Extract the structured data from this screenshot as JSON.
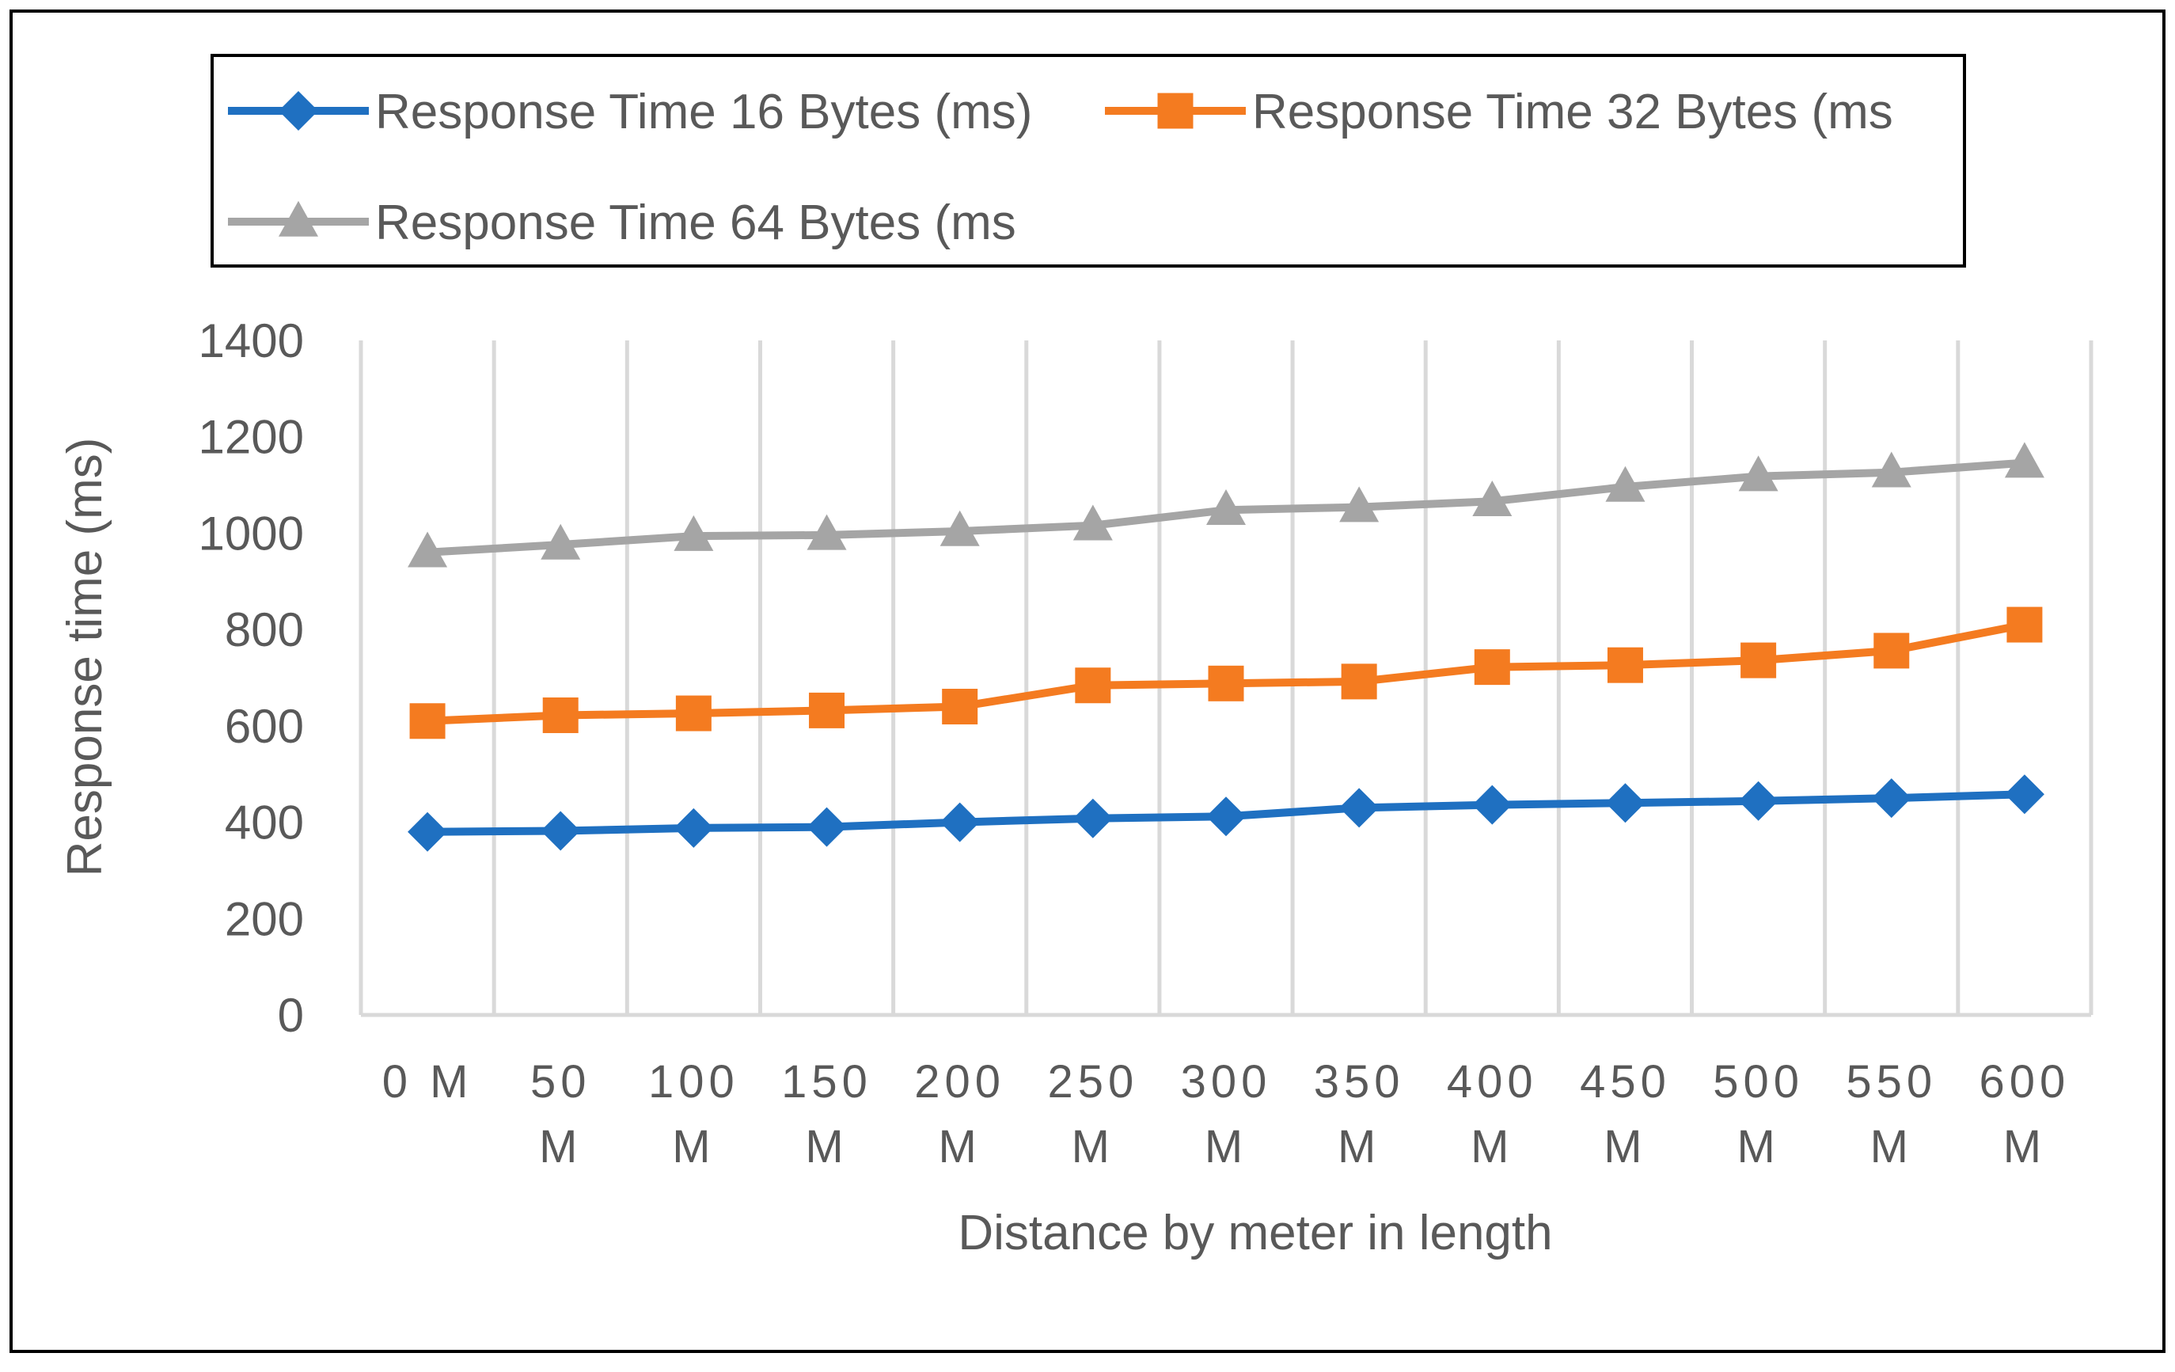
{
  "chart_data": {
    "type": "line",
    "title": "",
    "xlabel": "Distance by meter in length",
    "ylabel": "Response time (ms)",
    "categories": [
      "0  M",
      "50 M",
      "100 M",
      "150 M",
      "200 M",
      "250 M",
      "300 M",
      "350 M",
      "400 M",
      "450 M",
      "500 M",
      "550 M",
      "600 M"
    ],
    "category_lines": [
      [
        "0  M"
      ],
      [
        "50",
        "M"
      ],
      [
        "100",
        "M"
      ],
      [
        "150",
        "M"
      ],
      [
        "200",
        "M"
      ],
      [
        "250",
        "M"
      ],
      [
        "300",
        "M"
      ],
      [
        "350",
        "M"
      ],
      [
        "400",
        "M"
      ],
      [
        "450",
        "M"
      ],
      [
        "500",
        "M"
      ],
      [
        "550",
        "M"
      ],
      [
        "600",
        "M"
      ]
    ],
    "ylim": [
      0,
      1400
    ],
    "yticks": [
      0,
      200,
      400,
      600,
      800,
      1000,
      1200,
      1400
    ],
    "grid": "vertical",
    "legend_position": "top",
    "series": [
      {
        "name": "Response Time 16 Bytes  (ms)",
        "color": "#1f70c1",
        "marker": "diamond",
        "values": [
          380,
          382,
          388,
          390,
          400,
          408,
          412,
          430,
          436,
          440,
          444,
          450,
          458
        ]
      },
      {
        "name": "Response Time 32 Bytes  (ms",
        "color": "#f47b20",
        "marker": "square",
        "values": [
          610,
          622,
          626,
          632,
          640,
          684,
          688,
          692,
          722,
          726,
          736,
          756,
          810
        ]
      },
      {
        "name": "Response Time  64 Bytes (ms",
        "color": "#a5a5a5",
        "marker": "triangle",
        "values": [
          960,
          976,
          994,
          996,
          1004,
          1016,
          1048,
          1054,
          1066,
          1096,
          1118,
          1126,
          1146
        ]
      }
    ]
  }
}
